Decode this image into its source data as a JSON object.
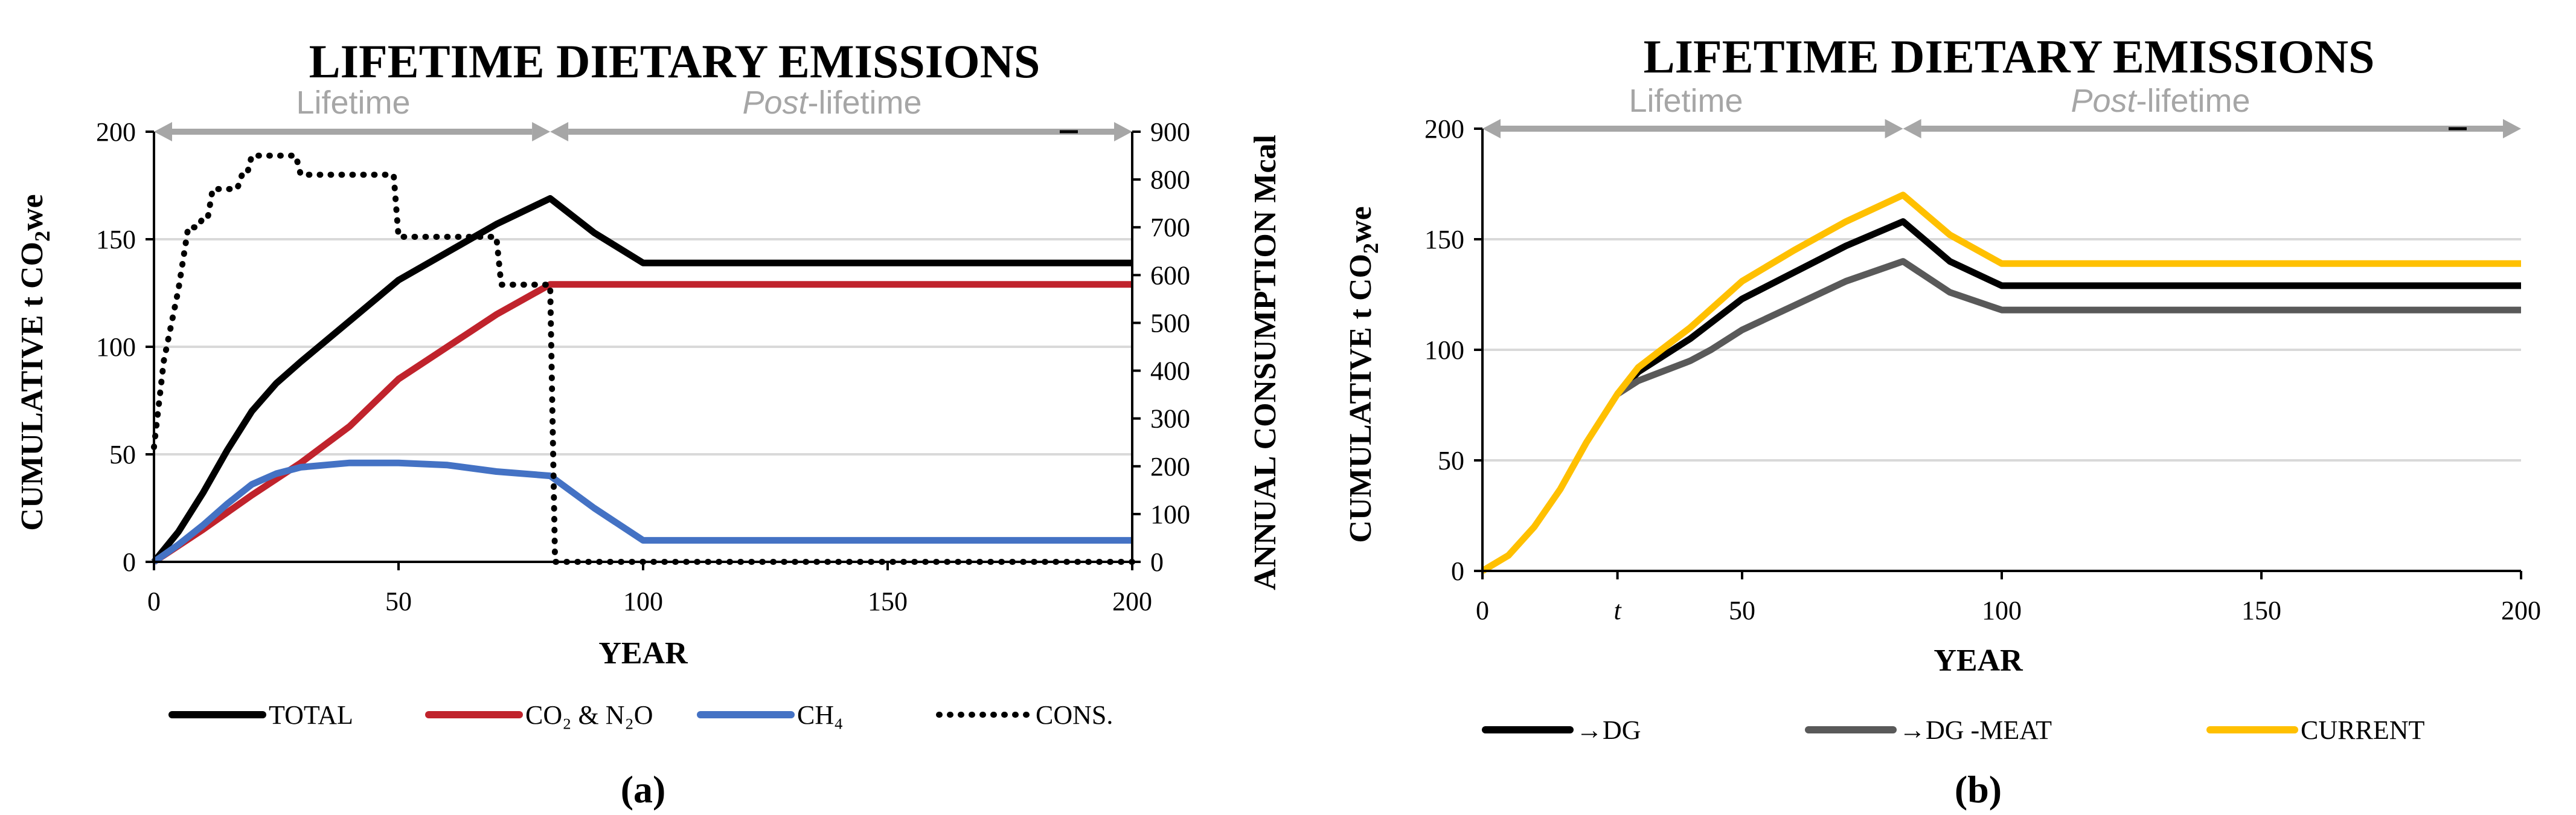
{
  "chart_data": [
    {
      "type": "line",
      "panel_label": "(a)",
      "title": "LIFETIME DIETARY EMISSIONS",
      "xlabel": "YEAR",
      "ylabel": "CUMULATIVE t CO2we",
      "ylabel_parts": {
        "main": "CUMULATIVE t CO",
        "sub": "2",
        "tail": "we"
      },
      "y2label": "ANNUAL CONSUMPTION Mcal",
      "xlim": [
        0,
        200
      ],
      "ylim": [
        0,
        200
      ],
      "y2lim": [
        0,
        900
      ],
      "xticks": [
        "0",
        "50",
        "100",
        "150",
        "200"
      ],
      "yticks": [
        "0",
        "50",
        "100",
        "150",
        "200"
      ],
      "y2ticks": [
        "0",
        "100",
        "200",
        "300",
        "400",
        "500",
        "600",
        "700",
        "800",
        "900"
      ],
      "period_labels": {
        "lifetime": "Lifetime",
        "post_italic": "Post",
        "post_rest": "-lifetime"
      },
      "period_boundaries": [
        0,
        81,
        200
      ],
      "series": [
        {
          "name": "TOTAL",
          "color": "#000000",
          "style": "solid",
          "axis": "left",
          "x": [
            0,
            5,
            10,
            15,
            20,
            25,
            30,
            40,
            50,
            60,
            70,
            81,
            90,
            100,
            200
          ],
          "y": [
            0,
            14,
            32,
            52,
            70,
            83,
            93,
            112,
            131,
            144,
            157,
            169,
            153,
            139,
            139
          ]
        },
        {
          "name": "CO₂ & N₂O",
          "color": "#c0232c",
          "style": "solid",
          "axis": "left",
          "x": [
            0,
            10,
            20,
            30,
            40,
            50,
            60,
            70,
            81,
            200
          ],
          "y": [
            0,
            15,
            31,
            46,
            63,
            85,
            100,
            115,
            129,
            129
          ]
        },
        {
          "name": "CH₄",
          "color": "#4472c4",
          "style": "solid",
          "axis": "left",
          "x": [
            0,
            5,
            10,
            15,
            20,
            25,
            30,
            40,
            50,
            60,
            70,
            81,
            90,
            100,
            200
          ],
          "y": [
            0,
            8,
            17,
            27,
            36,
            41,
            44,
            46,
            46,
            45,
            42,
            40,
            25,
            10,
            10
          ]
        },
        {
          "name": "CONS.",
          "color": "#000000",
          "style": "dotted",
          "axis": "right",
          "x": [
            0,
            2,
            5,
            7,
            9,
            10,
            11,
            12,
            13,
            17,
            18,
            19,
            20,
            21,
            22,
            28,
            29,
            30,
            31,
            48,
            49,
            50,
            51,
            62,
            63,
            64,
            65,
            70,
            71,
            72,
            73,
            80,
            81,
            82,
            83,
            200
          ],
          "y": [
            240,
            420,
            570,
            700,
            700,
            720,
            720,
            780,
            780,
            780,
            810,
            810,
            850,
            850,
            850,
            850,
            850,
            810,
            810,
            810,
            810,
            680,
            680,
            680,
            680,
            680,
            680,
            680,
            580,
            580,
            580,
            580,
            580,
            0,
            0,
            0
          ]
        }
      ],
      "legend": [
        "TOTAL",
        "CO₂ & N₂O",
        "CH₄",
        "CONS."
      ]
    },
    {
      "type": "line",
      "panel_label": "(b)",
      "title": "LIFETIME DIETARY EMISSIONS",
      "xlabel": "YEAR",
      "ylabel": "CUMULATIVE t CO2we",
      "ylabel_parts": {
        "main": "CUMULATIVE t CO",
        "sub": "2",
        "tail": "we"
      },
      "xlim": [
        0,
        200
      ],
      "ylim": [
        0,
        200
      ],
      "xticks": [
        "0",
        "t",
        "50",
        "100",
        "150",
        "200"
      ],
      "xtick_values": [
        0,
        26,
        50,
        100,
        150,
        200
      ],
      "yticks": [
        "0",
        "50",
        "100",
        "150",
        "200"
      ],
      "period_labels": {
        "lifetime": "Lifetime",
        "post_italic": "Post",
        "post_rest": "-lifetime"
      },
      "period_boundaries": [
        0,
        81,
        200
      ],
      "series": [
        {
          "name": "→DG",
          "color": "#000000",
          "style": "solid",
          "x": [
            26,
            30,
            40,
            50,
            60,
            70,
            81,
            90,
            100,
            200
          ],
          "y": [
            80,
            90,
            105,
            123,
            135,
            147,
            158,
            140,
            129,
            129
          ]
        },
        {
          "name": "→DG -MEAT",
          "color": "#595959",
          "style": "solid",
          "x": [
            26,
            30,
            40,
            44,
            50,
            60,
            70,
            81,
            90,
            100,
            200
          ],
          "y": [
            80,
            86,
            95,
            100,
            109,
            120,
            131,
            140,
            126,
            118,
            118
          ]
        },
        {
          "name": "CURRENT",
          "color": "#ffc000",
          "style": "solid",
          "x": [
            0,
            5,
            10,
            15,
            20,
            26,
            30,
            40,
            50,
            60,
            70,
            81,
            90,
            100,
            200
          ],
          "y": [
            0,
            7,
            20,
            37,
            58,
            80,
            92,
            110,
            131,
            145,
            158,
            170,
            152,
            139,
            139
          ]
        }
      ],
      "legend": [
        "→DG",
        "→DG -MEAT",
        "CURRENT"
      ]
    }
  ]
}
